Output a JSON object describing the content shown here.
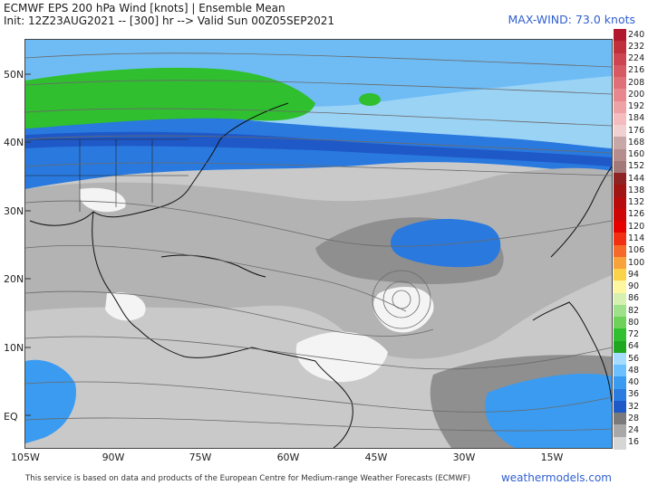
{
  "header": {
    "title_line1": "ECMWF EPS 200 hPa Wind [knots] | Ensemble Mean",
    "title_line2": "Init: 12Z23AUG2021 -- [300] hr --> Valid Sun 00Z05SEP2021",
    "max_wind": "MAX-WIND: 73.0 knots"
  },
  "axes": {
    "lat_labels": [
      "50N",
      "40N",
      "30N",
      "20N",
      "10N",
      "EQ"
    ],
    "lon_labels": [
      "105W",
      "90W",
      "75W",
      "60W",
      "45W",
      "30W",
      "15W"
    ]
  },
  "colorbar": {
    "labels": [
      "240",
      "232",
      "224",
      "216",
      "208",
      "200",
      "192",
      "184",
      "176",
      "168",
      "160",
      "152",
      "144",
      "138",
      "132",
      "126",
      "120",
      "114",
      "106",
      "100",
      "94",
      "90",
      "86",
      "82",
      "80",
      "72",
      "64",
      "56",
      "48",
      "40",
      "36",
      "32",
      "28",
      "24",
      "16"
    ],
    "colors": [
      "#b2182b",
      "#c0303a",
      "#cc4550",
      "#d75a63",
      "#e07078",
      "#e8888e",
      "#efa2a6",
      "#f4bcbf",
      "#f1d0d0",
      "#c8a7a7",
      "#b58d8d",
      "#a37878",
      "#8e2323",
      "#a01414",
      "#b80c0c",
      "#cf0606",
      "#e60000",
      "#f22f12",
      "#f56a2a",
      "#f8a23c",
      "#fbd34b",
      "#fff6a0",
      "#d5f0b0",
      "#9fe08a",
      "#6ed25a",
      "#2fbf2f",
      "#1fa71f",
      "#a5dcff",
      "#6cc0ff",
      "#3a9bf0",
      "#2a7ce0",
      "#1f59c8",
      "#7a7a7a",
      "#a8a8a8",
      "#d6d6d6"
    ]
  },
  "footer": {
    "disclaimer": "This service is based on data and products of the European Centre for Medium-range Weather Forecasts (ECMWF)",
    "brand": "weathermodels.com"
  }
}
